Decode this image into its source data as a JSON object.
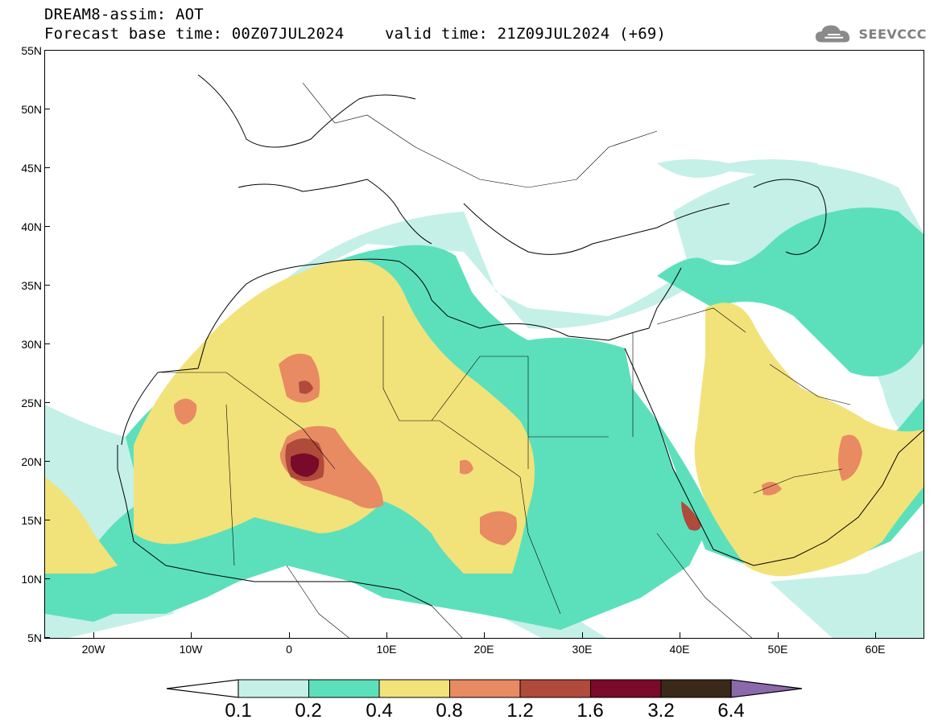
{
  "header": {
    "title": "DREAM8-assim: AOT",
    "base_time": "Forecast base time: 00Z07JUL2024",
    "valid_time": "valid time: 21Z09JUL2024 (+69)"
  },
  "logo": {
    "text": "SEEVCCC",
    "icon": "cloud-icon"
  },
  "axes": {
    "lat_labels": [
      "55N",
      "50N",
      "45N",
      "40N",
      "35N",
      "30N",
      "25N",
      "20N",
      "15N",
      "10N",
      "5N"
    ],
    "lon_labels": [
      "20W",
      "10W",
      "0",
      "10E",
      "20E",
      "30E",
      "40E",
      "50E",
      "60E"
    ]
  },
  "colorbar": {
    "levels": [
      "0.1",
      "0.2",
      "0.4",
      "0.8",
      "1.2",
      "1.6",
      "3.2",
      "6.4"
    ],
    "colors": [
      "#c4f0e8",
      "#5ce0bc",
      "#f2e27a",
      "#e88a62",
      "#b04a3a",
      "#7a0a2a",
      "#3a2818",
      "#8a6aaa"
    ]
  },
  "map": {
    "lon_range": [
      -25,
      65
    ],
    "lat_range": [
      5,
      55
    ],
    "field": "AOT"
  }
}
